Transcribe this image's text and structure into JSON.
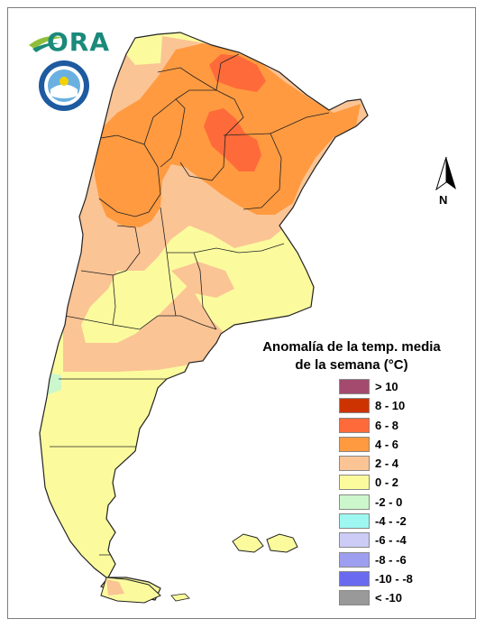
{
  "map": {
    "title_line1": "Anomalía de la temp. media",
    "title_line2": "de la semana (°C)",
    "north_label": "N",
    "logo_text": "ORA",
    "legend": [
      {
        "label": "> 10",
        "color": "#a34a6e"
      },
      {
        "label": "8 - 10",
        "color": "#cc3300"
      },
      {
        "label": "6 - 8",
        "color": "#ff6a3a"
      },
      {
        "label": "4 - 6",
        "color": "#ff9a40"
      },
      {
        "label": "2 - 4",
        "color": "#fbc495"
      },
      {
        "label": "0 - 2",
        "color": "#fbfb9e"
      },
      {
        "label": "-2 - 0",
        "color": "#ccf7cc"
      },
      {
        "label": "-4 - -2",
        "color": "#9ef7f0"
      },
      {
        "label": "-6 - -4",
        "color": "#ccccf7"
      },
      {
        "label": "-8 - -6",
        "color": "#9e9ef0"
      },
      {
        "label": "-10 - -8",
        "color": "#6a6af0"
      },
      {
        "label": "< -10",
        "color": "#999999"
      }
    ],
    "colors": {
      "land_base": "#fbfb9e",
      "anom_2_4": "#fbc495",
      "anom_4_6": "#ff9a40",
      "anom_6_8": "#ff6a3a",
      "anom_m2_0": "#ccf7cc",
      "border": "#222222"
    }
  }
}
